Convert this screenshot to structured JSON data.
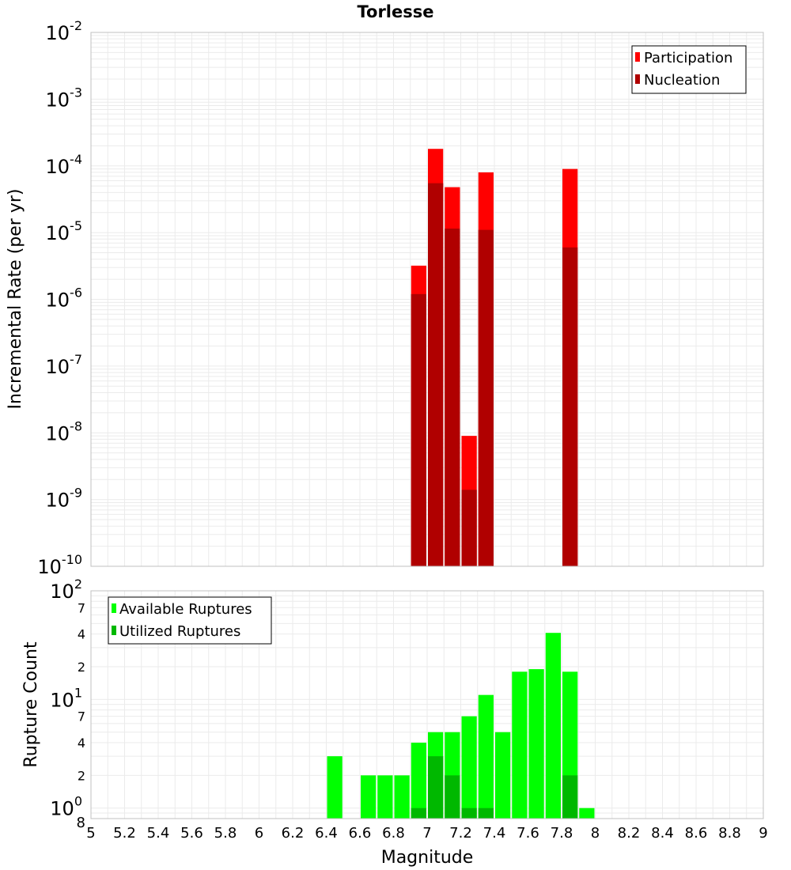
{
  "chart_data": [
    {
      "type": "bar",
      "title": "Torlesse",
      "xlabel": "",
      "ylabel": "Incremental Rate (per yr)",
      "y_scale": "log",
      "ylim": [
        1e-10,
        0.01
      ],
      "xlim": [
        5,
        9
      ],
      "legend_position": "top-right",
      "y_tick_bases": [
        "10",
        "10",
        "10",
        "10",
        "10",
        "10",
        "10",
        "10",
        "10"
      ],
      "y_tick_exponents": [
        "-10",
        "-9",
        "-8",
        "-7",
        "-6",
        "-5",
        "-4",
        "-3",
        "-2"
      ],
      "x": [
        6.95,
        7.05,
        7.15,
        7.25,
        7.35,
        7.85
      ],
      "series": [
        {
          "name": "Participation",
          "color": "#ff0000",
          "values": [
            3.2e-06,
            0.00018,
            4.8e-05,
            9e-09,
            8e-05,
            9e-05
          ]
        },
        {
          "name": "Nucleation",
          "color": "#b00000",
          "values": [
            1.2e-06,
            5.5e-05,
            1.15e-05,
            1.4e-09,
            1.1e-05,
            6e-06
          ]
        }
      ]
    },
    {
      "type": "bar",
      "title": "",
      "xlabel": "Magnitude",
      "ylabel": "Rupture Count",
      "y_scale": "log",
      "ylim": [
        0.8,
        100
      ],
      "xlim": [
        5,
        9
      ],
      "legend_position": "top-left",
      "x_ticks": [
        "5",
        "5.2",
        "5.4",
        "5.6",
        "5.8",
        "6",
        "6.2",
        "6.4",
        "6.6",
        "6.8",
        "7",
        "7.2",
        "7.4",
        "7.6",
        "7.8",
        "8",
        "8.2",
        "8.4",
        "8.6",
        "8.8",
        "9"
      ],
      "y_minor_labels": [
        {
          "value": 2,
          "label": "2"
        },
        {
          "value": 4,
          "label": "4"
        },
        {
          "value": 7,
          "label": "7"
        },
        {
          "value": 20,
          "label": "2"
        },
        {
          "value": 40,
          "label": "4"
        },
        {
          "value": 70,
          "label": "7"
        }
      ],
      "y_major_labels": [
        {
          "value": 1,
          "base": "10",
          "exp": "0"
        },
        {
          "value": 10,
          "base": "10",
          "exp": "1"
        },
        {
          "value": 100,
          "base": "10",
          "exp": "2"
        }
      ],
      "y_bottom_label": "8",
      "x": [
        6.45,
        6.65,
        6.75,
        6.85,
        6.95,
        7.05,
        7.15,
        7.25,
        7.35,
        7.45,
        7.55,
        7.65,
        7.75,
        7.85,
        7.95
      ],
      "series": [
        {
          "name": "Available Ruptures",
          "color": "#00ff00",
          "values": [
            3,
            2,
            2,
            2,
            4,
            5,
            5,
            7,
            11,
            5,
            18,
            19,
            41,
            18,
            1
          ]
        },
        {
          "name": "Utilized Ruptures",
          "color": "#00b800",
          "values": [
            0,
            0,
            0,
            0,
            1,
            3,
            2,
            1,
            1,
            0,
            0,
            0,
            0,
            2,
            0
          ]
        }
      ]
    }
  ]
}
